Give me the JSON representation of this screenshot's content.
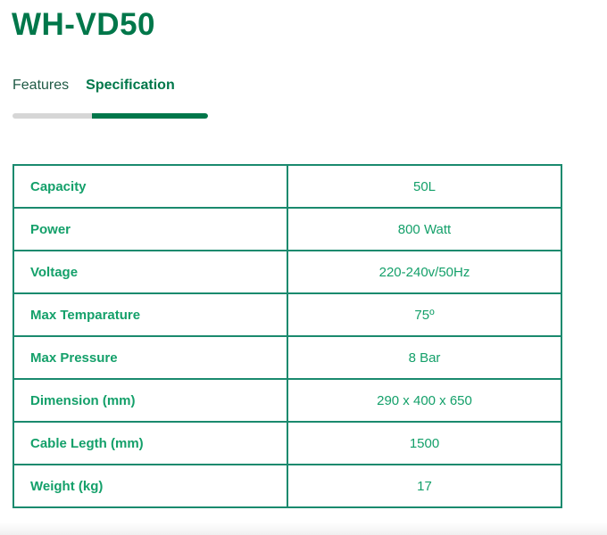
{
  "title": "WH-VD50",
  "tabs": [
    {
      "label": "Features",
      "active": false
    },
    {
      "label": "Specification",
      "active": true
    }
  ],
  "colors": {
    "brand": "#00774a",
    "table_text": "#14a06a",
    "border": "#1a8a6e",
    "inactive_bar": "#d6d6d6"
  },
  "specs": [
    {
      "label": "Capacity",
      "value": "50L"
    },
    {
      "label": "Power",
      "value": "800 Watt"
    },
    {
      "label": "Voltage",
      "value": "220-240v/50Hz"
    },
    {
      "label": "Max Temparature",
      "value": "75º"
    },
    {
      "label": "Max Pressure",
      "value": "8 Bar"
    },
    {
      "label": "Dimension (mm)",
      "value": "290 x 400 x 650"
    },
    {
      "label": "Cable Legth (mm)",
      "value": "1500"
    },
    {
      "label": "Weight (kg)",
      "value": "17"
    }
  ]
}
